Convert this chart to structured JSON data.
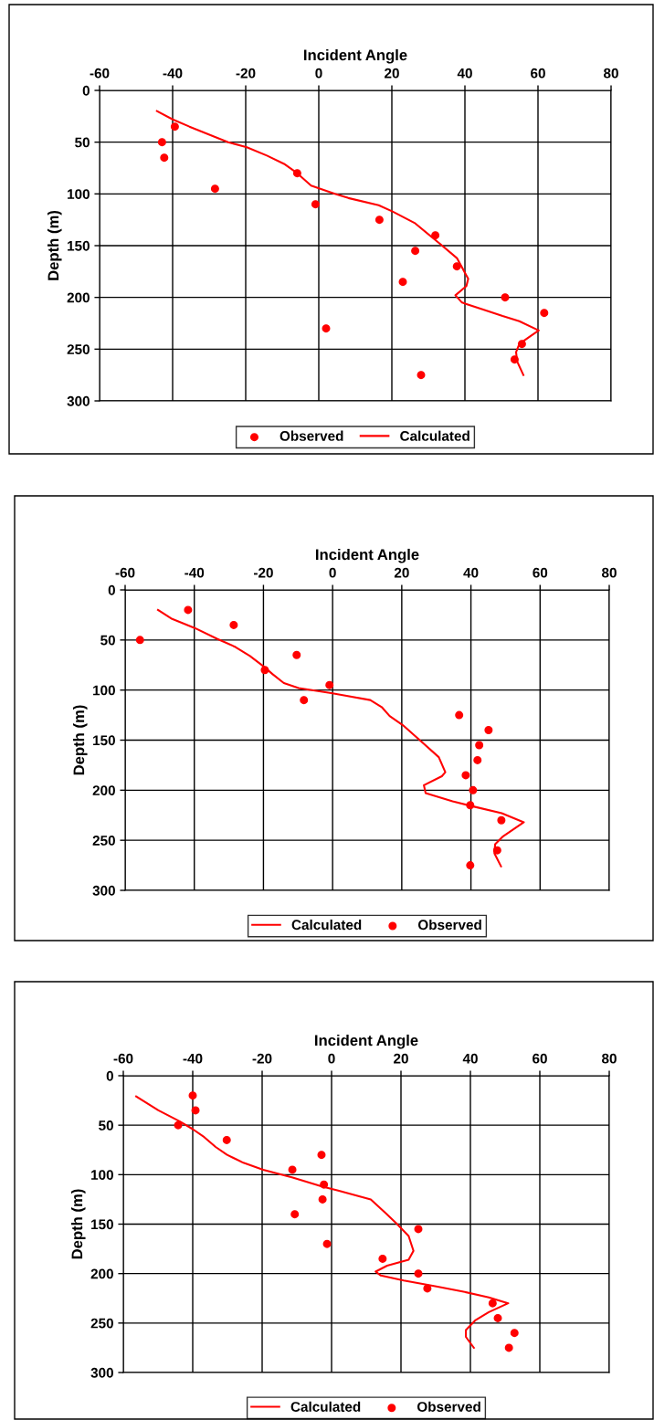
{
  "chart_data": [
    {
      "type": "line",
      "xlabel": "Incident Angle",
      "ylabel": "Depth (m)",
      "xlim": [
        -60,
        80
      ],
      "xticks": [
        -60,
        -40,
        -20,
        0,
        20,
        40,
        60,
        80
      ],
      "ylim": [
        300,
        0
      ],
      "yticks": [
        0,
        50,
        100,
        150,
        200,
        250,
        300
      ],
      "grid": true,
      "legend": "bottom",
      "series": [
        {
          "name": "Observed",
          "type": "scatter",
          "marker": "circle",
          "color": "#ff0000",
          "x": [
            -39.4,
            -42.9,
            -42.3,
            -28.4,
            -5.9,
            -0.9,
            16.6,
            31.9,
            26.4,
            37.8,
            23.0,
            51.0,
            61.7,
            2.0,
            55.6,
            53.6,
            28.0
          ],
          "values": [
            35,
            50,
            65,
            95,
            80,
            110,
            125,
            140,
            155,
            170,
            185,
            200,
            215,
            230,
            245,
            260,
            275
          ]
        },
        {
          "name": "Calculated",
          "marker": "none",
          "color": "#ff0000",
          "x": [
            -44.3,
            -40,
            -35.4,
            -24.8,
            -19.7,
            -14.2,
            -9.5,
            -5.9,
            -2.1,
            4.4,
            8.1,
            16.4,
            20.2,
            26.2,
            33.1,
            37.8,
            40.9,
            40.4,
            37.4,
            39.2,
            45.2,
            50.3,
            54.9,
            60.2,
            58.1,
            54.9,
            54.0,
            54.3,
            56.0
          ],
          "values": [
            20,
            28,
            35,
            50,
            55,
            63,
            71,
            80,
            92,
            100,
            104,
            111,
            117,
            128,
            148,
            162,
            182,
            189,
            198,
            205,
            212,
            218,
            223,
            232,
            237,
            245,
            253,
            262,
            275
          ]
        }
      ]
    },
    {
      "type": "line",
      "xlabel": "Incident Angle",
      "ylabel": "Depth (m)",
      "xlim": [
        -60,
        80
      ],
      "xticks": [
        -60,
        -40,
        -20,
        0,
        20,
        40,
        60,
        80
      ],
      "ylim": [
        300,
        0
      ],
      "yticks": [
        0,
        50,
        100,
        150,
        200,
        250,
        300
      ],
      "grid": true,
      "legend": "bottom",
      "series": [
        {
          "name": "Calculated",
          "marker": "none",
          "color": "#ff0000",
          "x": [
            -50.5,
            -46.4,
            -39.9,
            -33.3,
            -28.1,
            -23.9,
            -20.1,
            -17.4,
            -14.1,
            -9.8,
            -0.4,
            10.9,
            14.2,
            16.5,
            20.3,
            25.5,
            30.7,
            32.6,
            31.6,
            26.4,
            26.9,
            34.7,
            40.4,
            48.9,
            55.3,
            49.3,
            47.0,
            46.8,
            48.7
          ],
          "values": [
            20,
            29,
            38,
            49,
            57,
            66,
            76,
            84,
            93,
            98,
            103,
            110,
            117,
            126,
            135,
            151,
            167,
            182,
            186,
            195,
            203,
            211,
            216,
            223,
            232,
            246,
            254,
            263,
            276
          ]
        },
        {
          "name": "Observed",
          "type": "scatter",
          "marker": "circle",
          "color": "#ff0000",
          "x": [
            -41.8,
            -28.6,
            -55.7,
            -10.4,
            -19.6,
            -0.9,
            -8.3,
            36.6,
            45.1,
            42.4,
            41.9,
            38.5,
            40.6,
            39.8,
            48.8,
            47.6,
            39.8
          ],
          "values": [
            20,
            35,
            50,
            65,
            80,
            95,
            110,
            125,
            140,
            155,
            170,
            185,
            200,
            215,
            230,
            260,
            275
          ]
        }
      ]
    },
    {
      "type": "line",
      "xlabel": "Incident Angle",
      "ylabel": "Depth (m)",
      "xlim": [
        -60,
        80
      ],
      "xticks": [
        -60,
        -40,
        -20,
        0,
        20,
        40,
        60,
        80
      ],
      "ylim": [
        300,
        0
      ],
      "yticks": [
        0,
        50,
        100,
        150,
        200,
        250,
        300
      ],
      "grid": true,
      "legend": "bottom",
      "series": [
        {
          "name": "Calculated",
          "marker": "none",
          "color": "#ff0000",
          "x": [
            -56.3,
            -49.9,
            -43.8,
            -40.0,
            -36.7,
            -33.4,
            -30.1,
            -25.4,
            -19.7,
            -11.2,
            -2.8,
            1.9,
            11.3,
            15.6,
            18.9,
            22.2,
            23.6,
            22.2,
            16.0,
            12.7,
            14.2,
            20.8,
            30.2,
            37.7,
            45.3,
            50.9,
            45.3,
            41.5,
            38.7,
            38.7,
            41.0
          ],
          "values": [
            21,
            35,
            46,
            54,
            62,
            72,
            80,
            88,
            95,
            103,
            112,
            116,
            125,
            139,
            150,
            162,
            177,
            186,
            192,
            198,
            202,
            207,
            213,
            218,
            224,
            230,
            239,
            247,
            257,
            264,
            275
          ]
        },
        {
          "name": "Observed",
          "type": "scatter",
          "marker": "circle",
          "color": "#ff0000",
          "x": [
            -40,
            -39.2,
            -44.2,
            -30.2,
            -2.9,
            -11.3,
            -2.2,
            -2.6,
            -10.6,
            25.0,
            -1.3,
            14.7,
            25.0,
            27.6,
            46.4,
            47.9,
            52.7,
            51.1
          ],
          "values": [
            20,
            35,
            50,
            65,
            80,
            95,
            110,
            125,
            140,
            155,
            170,
            185,
            200,
            215,
            230,
            245,
            260,
            275
          ]
        }
      ]
    }
  ]
}
